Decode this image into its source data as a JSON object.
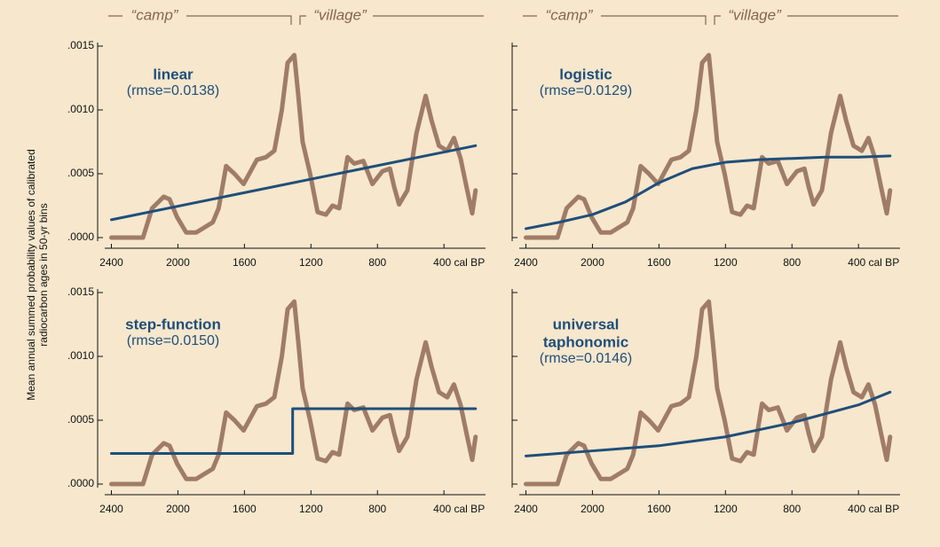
{
  "shared_ylabel_lines": [
    "Mean annual summed probability values of calibrated",
    "radiocarbon ages in 50-yr bins"
  ],
  "chart_data": [
    {
      "type": "line",
      "model_lines": [
        "linear"
      ],
      "rmse_label": "(rmse=0.0138)",
      "period_labels": [
        "“camp”",
        "“village”"
      ],
      "xlim": [
        2440,
        150
      ],
      "ylim": [
        0,
        0.0015
      ],
      "show_ytick_labels": true,
      "xticks": [
        2400,
        2000,
        1600,
        1200,
        800,
        {
          "value": 400,
          "label": "400 cal BP"
        }
      ],
      "yticks": [
        {
          "value": 0,
          "label": ".0000"
        },
        {
          "value": 0.0005,
          "label": ".0005"
        },
        {
          "value": 0.001,
          "label": ".0010"
        },
        {
          "value": 0.0015,
          "label": ".0015"
        }
      ],
      "series": [
        {
          "color": "#a07c68",
          "x": [
            2400,
            2300,
            2210,
            2155,
            2085,
            2050,
            2005,
            1950,
            1890,
            1790,
            1755,
            1710,
            1660,
            1605,
            1525,
            1470,
            1420,
            1375,
            1340,
            1300,
            1275,
            1250,
            1205,
            1160,
            1110,
            1070,
            1030,
            980,
            940,
            885,
            830,
            770,
            725,
            700,
            670,
            620,
            565,
            510,
            475,
            430,
            380,
            340,
            300,
            260,
            230,
            210
          ],
          "values": [
            0,
            0,
            0,
            0.00023,
            0.00032,
            0.0003,
            0.00016,
            4e-05,
            4e-05,
            0.00012,
            0.00023,
            0.00056,
            0.0005,
            0.00042,
            0.00061,
            0.00063,
            0.00068,
            0.001,
            0.00137,
            0.00143,
            0.0011,
            0.00075,
            0.0005,
            0.0002,
            0.00018,
            0.00025,
            0.00023,
            0.00063,
            0.00058,
            0.0006,
            0.00042,
            0.00052,
            0.00054,
            0.0004,
            0.00026,
            0.00037,
            0.00082,
            0.00111,
            0.00092,
            0.00072,
            0.00068,
            0.00078,
            0.00062,
            0.00037,
            0.00019,
            0.00037
          ]
        },
        {
          "color": "#1f4e79",
          "x": [
            2400,
            210
          ],
          "values": [
            0.00014,
            0.00072
          ]
        }
      ]
    },
    {
      "type": "line",
      "model_lines": [
        "logistic"
      ],
      "rmse_label": "(rmse=0.0129)",
      "period_labels": [
        "“camp”",
        "“village”"
      ],
      "xlim": [
        2440,
        150
      ],
      "ylim": [
        0,
        0.0015
      ],
      "show_ytick_labels": false,
      "xticks": [
        2400,
        2000,
        1600,
        1200,
        800,
        {
          "value": 400,
          "label": "400 cal BP"
        }
      ],
      "yticks": [
        0,
        0.0005,
        0.001,
        0.0015
      ],
      "series": [
        {
          "color": "#a07c68",
          "x": [
            2400,
            2300,
            2210,
            2155,
            2085,
            2050,
            2005,
            1950,
            1890,
            1790,
            1755,
            1710,
            1660,
            1605,
            1525,
            1470,
            1420,
            1375,
            1340,
            1300,
            1275,
            1250,
            1205,
            1160,
            1110,
            1070,
            1030,
            980,
            940,
            885,
            830,
            770,
            725,
            700,
            670,
            620,
            565,
            510,
            475,
            430,
            380,
            340,
            300,
            260,
            230,
            210
          ],
          "values": [
            0,
            0,
            0,
            0.00023,
            0.00032,
            0.0003,
            0.00016,
            4e-05,
            4e-05,
            0.00012,
            0.00023,
            0.00056,
            0.0005,
            0.00042,
            0.00061,
            0.00063,
            0.00068,
            0.001,
            0.00137,
            0.00143,
            0.0011,
            0.00075,
            0.0005,
            0.0002,
            0.00018,
            0.00025,
            0.00023,
            0.00063,
            0.00058,
            0.0006,
            0.00042,
            0.00052,
            0.00054,
            0.0004,
            0.00026,
            0.00037,
            0.00082,
            0.00111,
            0.00092,
            0.00072,
            0.00068,
            0.00078,
            0.00062,
            0.00037,
            0.00019,
            0.00037
          ]
        },
        {
          "color": "#1f4e79",
          "x": [
            2400,
            2200,
            2000,
            1800,
            1600,
            1400,
            1200,
            1000,
            800,
            600,
            400,
            210
          ],
          "values": [
            7e-05,
            0.00012,
            0.00018,
            0.00028,
            0.00043,
            0.00054,
            0.00059,
            0.00061,
            0.00062,
            0.00063,
            0.00063,
            0.00064
          ]
        }
      ]
    },
    {
      "type": "line",
      "model_lines": [
        "step-function"
      ],
      "rmse_label": "(rmse=0.0150)",
      "xlim": [
        2440,
        150
      ],
      "ylim": [
        0,
        0.0015
      ],
      "show_ytick_labels": true,
      "xticks": [
        2400,
        2000,
        1600,
        1200,
        800,
        {
          "value": 400,
          "label": "400 cal BP"
        }
      ],
      "yticks": [
        {
          "value": 0,
          "label": ".0000"
        },
        {
          "value": 0.0005,
          "label": ".0005"
        },
        {
          "value": 0.001,
          "label": ".0010"
        },
        {
          "value": 0.0015,
          "label": ".0015"
        }
      ],
      "series": [
        {
          "color": "#a07c68",
          "x": [
            2400,
            2300,
            2210,
            2155,
            2085,
            2050,
            2005,
            1950,
            1890,
            1790,
            1755,
            1710,
            1660,
            1605,
            1525,
            1470,
            1420,
            1375,
            1340,
            1300,
            1275,
            1250,
            1205,
            1160,
            1110,
            1070,
            1030,
            980,
            940,
            885,
            830,
            770,
            725,
            700,
            670,
            620,
            565,
            510,
            475,
            430,
            380,
            340,
            300,
            260,
            230,
            210
          ],
          "values": [
            0,
            0,
            0,
            0.00023,
            0.00032,
            0.0003,
            0.00016,
            4e-05,
            4e-05,
            0.00012,
            0.00023,
            0.00056,
            0.0005,
            0.00042,
            0.00061,
            0.00063,
            0.00068,
            0.001,
            0.00137,
            0.00143,
            0.0011,
            0.00075,
            0.0005,
            0.0002,
            0.00018,
            0.00025,
            0.00023,
            0.00063,
            0.00058,
            0.0006,
            0.00042,
            0.00052,
            0.00054,
            0.0004,
            0.00026,
            0.00037,
            0.00082,
            0.00111,
            0.00092,
            0.00072,
            0.00068,
            0.00078,
            0.00062,
            0.00037,
            0.00019,
            0.00037
          ]
        },
        {
          "color": "#1f4e79",
          "x": [
            2400,
            1310,
            1310,
            210
          ],
          "values": [
            0.00024,
            0.00024,
            0.00059,
            0.00059
          ]
        }
      ]
    },
    {
      "type": "line",
      "model_lines": [
        "universal",
        "taphonomic"
      ],
      "rmse_label": "(rmse=0.0146)",
      "xlim": [
        2440,
        150
      ],
      "ylim": [
        0,
        0.0015
      ],
      "show_ytick_labels": false,
      "xticks": [
        2400,
        2000,
        1600,
        1200,
        800,
        {
          "value": 400,
          "label": "400 cal BP"
        }
      ],
      "yticks": [
        0,
        0.0005,
        0.001,
        0.0015
      ],
      "series": [
        {
          "color": "#a07c68",
          "x": [
            2400,
            2300,
            2210,
            2155,
            2085,
            2050,
            2005,
            1950,
            1890,
            1790,
            1755,
            1710,
            1660,
            1605,
            1525,
            1470,
            1420,
            1375,
            1340,
            1300,
            1275,
            1250,
            1205,
            1160,
            1110,
            1070,
            1030,
            980,
            940,
            885,
            830,
            770,
            725,
            700,
            670,
            620,
            565,
            510,
            475,
            430,
            380,
            340,
            300,
            260,
            230,
            210
          ],
          "values": [
            0,
            0,
            0,
            0.00023,
            0.00032,
            0.0003,
            0.00016,
            4e-05,
            4e-05,
            0.00012,
            0.00023,
            0.00056,
            0.0005,
            0.00042,
            0.00061,
            0.00063,
            0.00068,
            0.001,
            0.00137,
            0.00143,
            0.0011,
            0.00075,
            0.0005,
            0.0002,
            0.00018,
            0.00025,
            0.00023,
            0.00063,
            0.00058,
            0.0006,
            0.00042,
            0.00052,
            0.00054,
            0.0004,
            0.00026,
            0.00037,
            0.00082,
            0.00111,
            0.00092,
            0.00072,
            0.00068,
            0.00078,
            0.00062,
            0.00037,
            0.00019,
            0.00037
          ]
        },
        {
          "color": "#1f4e79",
          "x": [
            2400,
            2000,
            1600,
            1200,
            800,
            400,
            210
          ],
          "values": [
            0.00022,
            0.00026,
            0.0003,
            0.00037,
            0.00048,
            0.00062,
            0.00072
          ]
        }
      ]
    }
  ]
}
